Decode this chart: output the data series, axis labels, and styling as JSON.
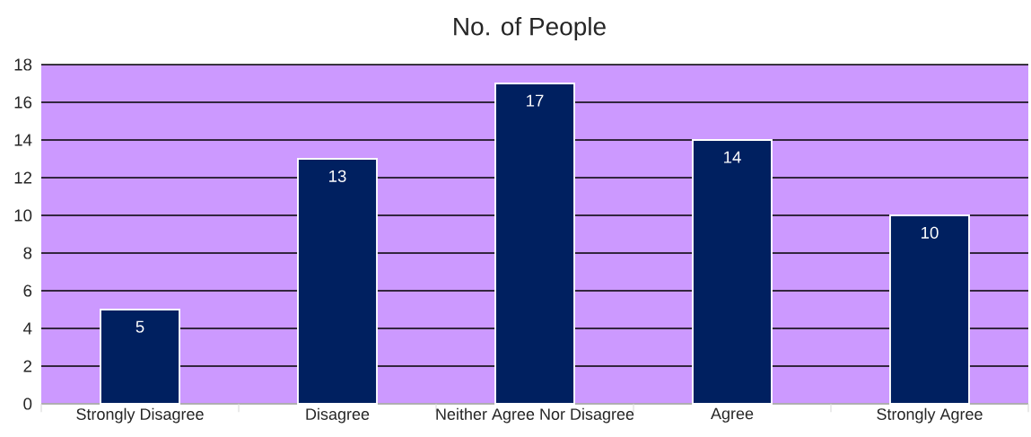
{
  "chart_data": {
    "type": "bar",
    "title": "No. of People",
    "categories": [
      "Strongly Disagree",
      "Disagree",
      "Neither Agree Nor Disagree",
      "Agree",
      "Strongly Agree"
    ],
    "values": [
      5,
      13,
      17,
      14,
      10
    ],
    "color": "#002060",
    "ylim": [
      0,
      18
    ],
    "yticks": [
      0,
      2,
      4,
      6,
      8,
      10,
      12,
      14,
      16,
      18
    ],
    "grid": "y",
    "data_labels": true
  }
}
